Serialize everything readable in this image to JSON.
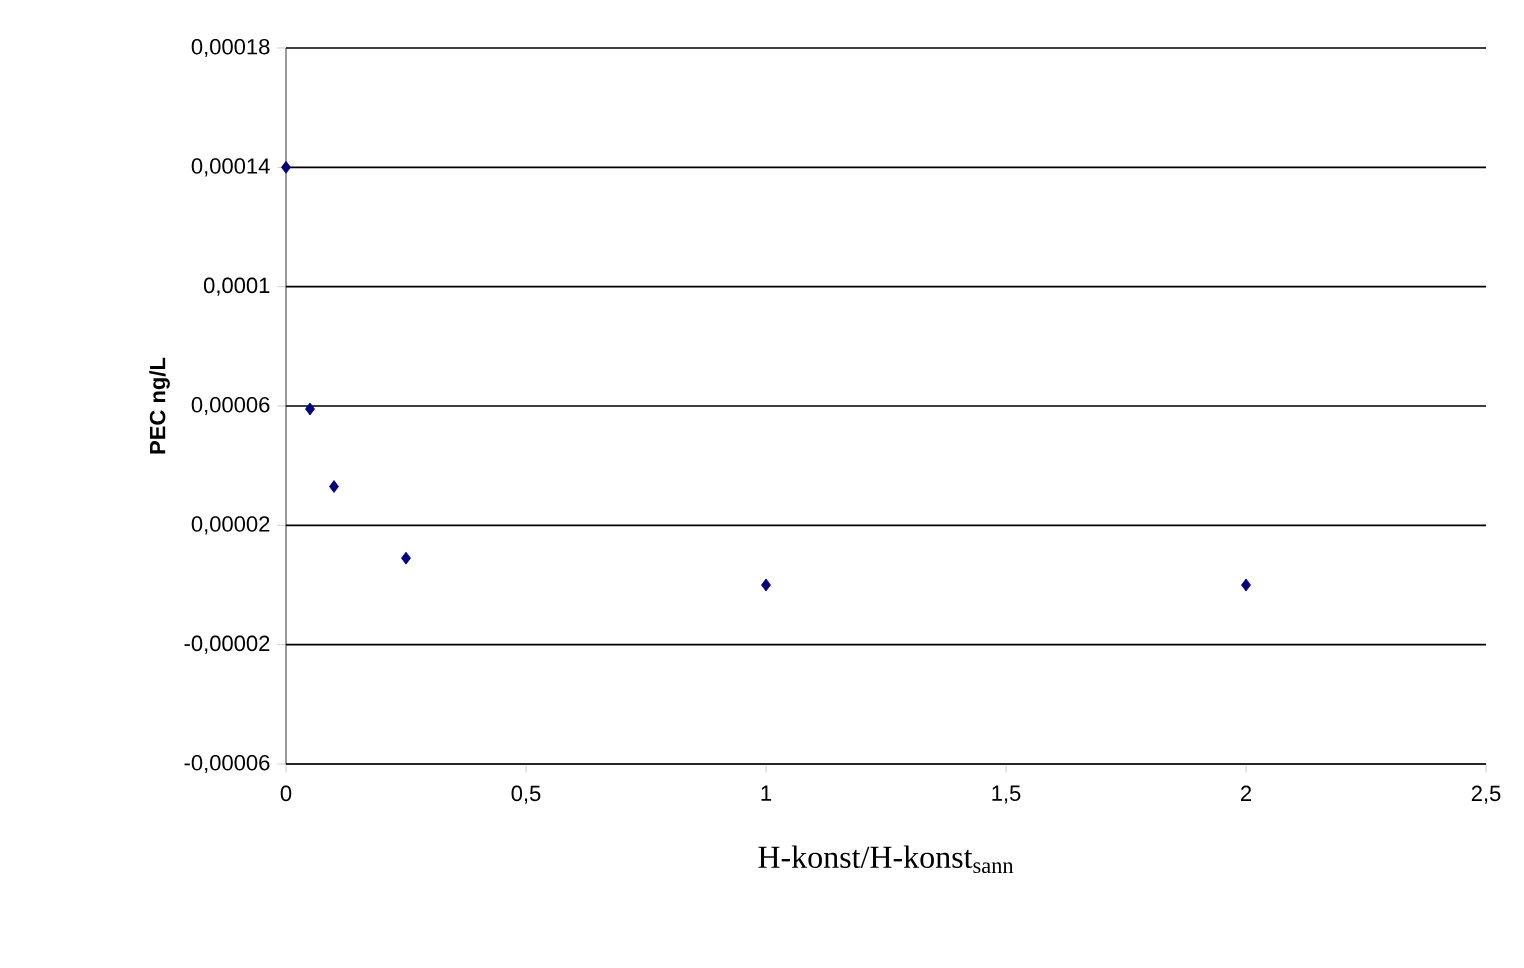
{
  "chart_data": {
    "type": "scatter",
    "xlabel": "H-konst/H-konst$_{sann}$",
    "ylabel": "PEC ng/L",
    "x": [
      0,
      0.05,
      0.1,
      0.25,
      1,
      2
    ],
    "series": [
      {
        "color": "#000080",
        "values": [
          0.00014,
          5.9e-05,
          3.3e-05,
          9e-06,
          0,
          0
        ]
      }
    ],
    "marker": "diamond",
    "grid": "y",
    "xlim": [
      0,
      2.5
    ],
    "xticks": [
      0,
      {
        "value": 0.5,
        "label": "0,5"
      },
      1,
      {
        "value": 1.5,
        "label": "1,5"
      },
      2,
      {
        "value": 2.5,
        "label": "2,5"
      }
    ],
    "ylim": [
      -6e-05,
      0.00018
    ],
    "yticks": [
      {
        "value": -6e-05,
        "label": "-0,00006"
      },
      {
        "value": -2e-05,
        "label": "-0,00002"
      },
      {
        "value": 2e-05,
        "label": "0,00002"
      },
      {
        "value": 6e-05,
        "label": "0,00006"
      },
      {
        "value": 0.0001,
        "label": "0,0001"
      },
      {
        "value": 0.00014,
        "label": "0,00014"
      },
      {
        "value": 0.00018,
        "label": "0,00018"
      }
    ]
  }
}
